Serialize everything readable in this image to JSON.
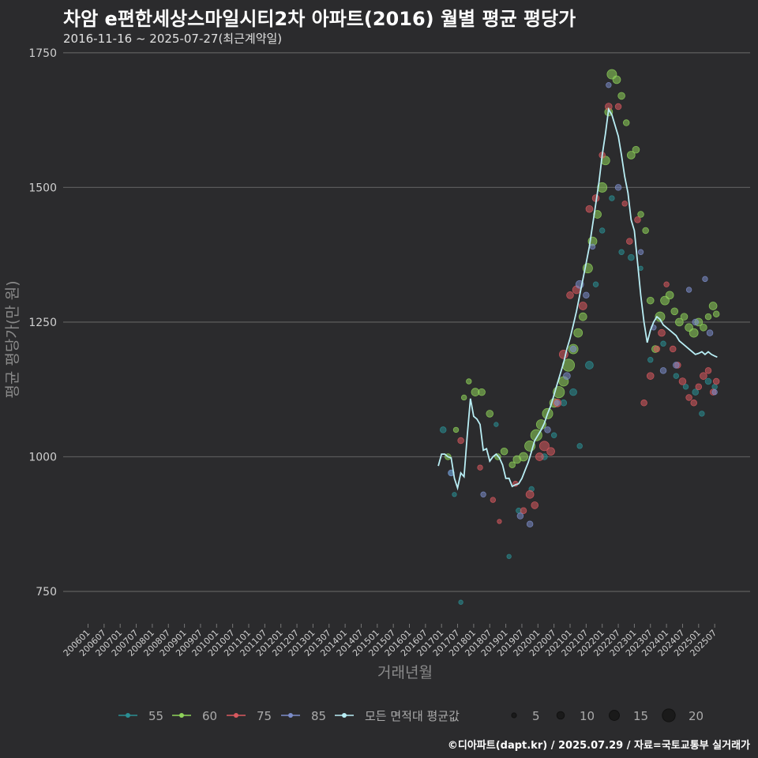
{
  "title": "차암 e편한세상스마일시티2차 아파트(2016) 월별 평균 평당가",
  "subtitle": "2016-11-16 ~ 2025-07-27(최근계약일)",
  "credit": "©디아파트(dapt.kr) / 2025.07.29 / 자료=국토교통부 실거래가",
  "colors": {
    "s55": "#2a8f94",
    "s60": "#8fd35a",
    "s75": "#d9595f",
    "s85": "#7c8dc9",
    "avg": "#b9eef5",
    "grid": "#5a5a5a"
  },
  "chart_data": {
    "type": "scatter",
    "xlabel": "거래년월",
    "ylabel": "평균 평당가(만 원)",
    "ylim": [
      690,
      1760
    ],
    "yticks": [
      750,
      1000,
      1250,
      1500,
      1750
    ],
    "ytick_labels": [
      "750",
      "1000",
      "1250",
      "1500",
      "1750"
    ],
    "xticks": [
      "200601",
      "200607",
      "200701",
      "200707",
      "200801",
      "200807",
      "200901",
      "200907",
      "201001",
      "201007",
      "201101",
      "201107",
      "201201",
      "201207",
      "201301",
      "201307",
      "201401",
      "201407",
      "201501",
      "201507",
      "201601",
      "201607",
      "201701",
      "201707",
      "201801",
      "201807",
      "201901",
      "201907",
      "202001",
      "202007",
      "202101",
      "202107",
      "202201",
      "202207",
      "202301",
      "202307",
      "202401",
      "202407",
      "202501",
      "202507"
    ],
    "series": [
      {
        "name": "55",
        "color": "#2a8f94",
        "points": [
          [
            2017.05,
            1050,
            3
          ],
          [
            2017.3,
            970,
            2
          ],
          [
            2017.4,
            930,
            1
          ],
          [
            2017.6,
            730,
            1
          ],
          [
            2018.7,
            1060,
            1
          ],
          [
            2019.1,
            815,
            1
          ],
          [
            2019.4,
            900,
            2
          ],
          [
            2019.8,
            940,
            2
          ],
          [
            2020.2,
            1000,
            3
          ],
          [
            2020.5,
            1040,
            2
          ],
          [
            2020.8,
            1100,
            3
          ],
          [
            2021.1,
            1120,
            4
          ],
          [
            2021.3,
            1020,
            2
          ],
          [
            2021.6,
            1170,
            5
          ],
          [
            2021.8,
            1320,
            2
          ],
          [
            2022.0,
            1420,
            2
          ],
          [
            2022.3,
            1480,
            2
          ],
          [
            2022.6,
            1380,
            2
          ],
          [
            2022.9,
            1370,
            3
          ],
          [
            2023.2,
            1350,
            1
          ],
          [
            2023.5,
            1180,
            2
          ],
          [
            2023.9,
            1210,
            2
          ],
          [
            2024.3,
            1150,
            2
          ],
          [
            2024.6,
            1130,
            2
          ],
          [
            2024.9,
            1120,
            3
          ],
          [
            2025.1,
            1080,
            2
          ],
          [
            2025.3,
            1140,
            3
          ],
          [
            2025.5,
            1130,
            2
          ]
        ]
      },
      {
        "name": "60",
        "color": "#8fd35a",
        "points": [
          [
            2017.2,
            1000,
            3
          ],
          [
            2017.45,
            1050,
            2
          ],
          [
            2017.7,
            1110,
            2
          ],
          [
            2017.85,
            1140,
            2
          ],
          [
            2018.05,
            1120,
            5
          ],
          [
            2018.25,
            1120,
            4
          ],
          [
            2018.5,
            1080,
            4
          ],
          [
            2018.75,
            1000,
            3
          ],
          [
            2018.95,
            1010,
            4
          ],
          [
            2019.2,
            985,
            3
          ],
          [
            2019.35,
            995,
            5
          ],
          [
            2019.55,
            1000,
            6
          ],
          [
            2019.75,
            1020,
            8
          ],
          [
            2019.95,
            1040,
            9
          ],
          [
            2020.1,
            1060,
            7
          ],
          [
            2020.3,
            1080,
            8
          ],
          [
            2020.5,
            1100,
            6
          ],
          [
            2020.65,
            1120,
            9
          ],
          [
            2020.8,
            1140,
            7
          ],
          [
            2020.95,
            1170,
            10
          ],
          [
            2021.1,
            1200,
            7
          ],
          [
            2021.25,
            1230,
            6
          ],
          [
            2021.4,
            1260,
            5
          ],
          [
            2021.55,
            1350,
            7
          ],
          [
            2021.7,
            1400,
            6
          ],
          [
            2021.85,
            1450,
            5
          ],
          [
            2022.0,
            1500,
            7
          ],
          [
            2022.1,
            1550,
            6
          ],
          [
            2022.2,
            1640,
            5
          ],
          [
            2022.3,
            1710,
            7
          ],
          [
            2022.45,
            1700,
            5
          ],
          [
            2022.6,
            1670,
            4
          ],
          [
            2022.75,
            1620,
            3
          ],
          [
            2022.9,
            1560,
            5
          ],
          [
            2023.05,
            1570,
            4
          ],
          [
            2023.2,
            1450,
            3
          ],
          [
            2023.35,
            1420,
            3
          ],
          [
            2023.5,
            1290,
            4
          ],
          [
            2023.65,
            1200,
            4
          ],
          [
            2023.8,
            1260,
            7
          ],
          [
            2023.95,
            1290,
            6
          ],
          [
            2024.1,
            1300,
            5
          ],
          [
            2024.25,
            1270,
            4
          ],
          [
            2024.4,
            1250,
            5
          ],
          [
            2024.55,
            1260,
            4
          ],
          [
            2024.7,
            1240,
            5
          ],
          [
            2024.85,
            1230,
            6
          ],
          [
            2025.0,
            1250,
            5
          ],
          [
            2025.15,
            1240,
            4
          ],
          [
            2025.3,
            1260,
            3
          ],
          [
            2025.45,
            1280,
            5
          ],
          [
            2025.55,
            1265,
            3
          ]
        ]
      },
      {
        "name": "75",
        "color": "#d9595f",
        "points": [
          [
            2017.6,
            1030,
            3
          ],
          [
            2018.2,
            980,
            2
          ],
          [
            2018.6,
            920,
            2
          ],
          [
            2018.8,
            880,
            1
          ],
          [
            2019.3,
            950,
            2
          ],
          [
            2019.55,
            900,
            3
          ],
          [
            2019.75,
            930,
            5
          ],
          [
            2019.9,
            910,
            4
          ],
          [
            2020.05,
            1000,
            5
          ],
          [
            2020.2,
            1020,
            7
          ],
          [
            2020.4,
            1010,
            5
          ],
          [
            2020.6,
            1100,
            5
          ],
          [
            2020.8,
            1190,
            6
          ],
          [
            2021.0,
            1300,
            4
          ],
          [
            2021.2,
            1310,
            5
          ],
          [
            2021.4,
            1280,
            5
          ],
          [
            2021.6,
            1460,
            4
          ],
          [
            2021.8,
            1480,
            4
          ],
          [
            2022.0,
            1560,
            3
          ],
          [
            2022.2,
            1650,
            4
          ],
          [
            2022.5,
            1650,
            3
          ],
          [
            2022.7,
            1470,
            2
          ],
          [
            2022.85,
            1400,
            3
          ],
          [
            2023.1,
            1440,
            3
          ],
          [
            2023.3,
            1100,
            3
          ],
          [
            2023.5,
            1150,
            4
          ],
          [
            2023.7,
            1200,
            3
          ],
          [
            2023.85,
            1230,
            4
          ],
          [
            2024.0,
            1320,
            2
          ],
          [
            2024.2,
            1200,
            3
          ],
          [
            2024.35,
            1170,
            3
          ],
          [
            2024.5,
            1140,
            4
          ],
          [
            2024.7,
            1110,
            3
          ],
          [
            2024.85,
            1100,
            3
          ],
          [
            2025.0,
            1130,
            3
          ],
          [
            2025.15,
            1150,
            4
          ],
          [
            2025.3,
            1160,
            3
          ],
          [
            2025.45,
            1120,
            3
          ],
          [
            2025.55,
            1140,
            3
          ]
        ]
      },
      {
        "name": "85",
        "color": "#7c8dc9",
        "points": [
          [
            2017.3,
            970,
            3
          ],
          [
            2018.3,
            930,
            2
          ],
          [
            2019.45,
            890,
            3
          ],
          [
            2019.75,
            875,
            3
          ],
          [
            2020.3,
            1050,
            3
          ],
          [
            2020.6,
            1100,
            2
          ],
          [
            2020.9,
            1150,
            4
          ],
          [
            2021.1,
            1200,
            3
          ],
          [
            2021.3,
            1320,
            5
          ],
          [
            2021.5,
            1300,
            3
          ],
          [
            2021.7,
            1390,
            2
          ],
          [
            2022.2,
            1690,
            2
          ],
          [
            2022.5,
            1500,
            3
          ],
          [
            2023.2,
            1380,
            2
          ],
          [
            2023.6,
            1240,
            2
          ],
          [
            2023.9,
            1160,
            3
          ],
          [
            2024.3,
            1170,
            3
          ],
          [
            2024.7,
            1310,
            2
          ],
          [
            2024.9,
            1250,
            3
          ],
          [
            2025.2,
            1330,
            2
          ],
          [
            2025.35,
            1230,
            3
          ],
          [
            2025.5,
            1120,
            2
          ]
        ]
      }
    ],
    "average": [
      [
        2016.9,
        983
      ],
      [
        2017.0,
        1005
      ],
      [
        2017.1,
        1005
      ],
      [
        2017.2,
        1000
      ],
      [
        2017.3,
        998
      ],
      [
        2017.4,
        960
      ],
      [
        2017.5,
        942
      ],
      [
        2017.6,
        970
      ],
      [
        2017.7,
        963
      ],
      [
        2017.8,
        1040
      ],
      [
        2017.9,
        1108
      ],
      [
        2018.0,
        1075
      ],
      [
        2018.1,
        1070
      ],
      [
        2018.2,
        1060
      ],
      [
        2018.3,
        1012
      ],
      [
        2018.4,
        1015
      ],
      [
        2018.5,
        992
      ],
      [
        2018.6,
        1000
      ],
      [
        2018.7,
        1005
      ],
      [
        2018.8,
        998
      ],
      [
        2018.9,
        985
      ],
      [
        2019.0,
        960
      ],
      [
        2019.1,
        960
      ],
      [
        2019.2,
        945
      ],
      [
        2019.3,
        948
      ],
      [
        2019.4,
        950
      ],
      [
        2019.5,
        960
      ],
      [
        2019.6,
        975
      ],
      [
        2019.7,
        990
      ],
      [
        2019.8,
        1010
      ],
      [
        2019.9,
        1030
      ],
      [
        2020.0,
        1040
      ],
      [
        2020.1,
        1050
      ],
      [
        2020.2,
        1062
      ],
      [
        2020.3,
        1080
      ],
      [
        2020.4,
        1095
      ],
      [
        2020.5,
        1115
      ],
      [
        2020.6,
        1135
      ],
      [
        2020.7,
        1155
      ],
      [
        2020.8,
        1175
      ],
      [
        2020.9,
        1200
      ],
      [
        2021.0,
        1220
      ],
      [
        2021.1,
        1245
      ],
      [
        2021.2,
        1270
      ],
      [
        2021.3,
        1300
      ],
      [
        2021.4,
        1330
      ],
      [
        2021.5,
        1360
      ],
      [
        2021.6,
        1390
      ],
      [
        2021.7,
        1430
      ],
      [
        2021.8,
        1470
      ],
      [
        2021.9,
        1510
      ],
      [
        2022.0,
        1560
      ],
      [
        2022.1,
        1600
      ],
      [
        2022.2,
        1645
      ],
      [
        2022.3,
        1635
      ],
      [
        2022.4,
        1615
      ],
      [
        2022.5,
        1595
      ],
      [
        2022.6,
        1560
      ],
      [
        2022.7,
        1520
      ],
      [
        2022.8,
        1490
      ],
      [
        2022.9,
        1440
      ],
      [
        2023.0,
        1420
      ],
      [
        2023.1,
        1360
      ],
      [
        2023.2,
        1300
      ],
      [
        2023.3,
        1250
      ],
      [
        2023.4,
        1212
      ],
      [
        2023.5,
        1235
      ],
      [
        2023.6,
        1250
      ],
      [
        2023.7,
        1260
      ],
      [
        2023.8,
        1255
      ],
      [
        2023.9,
        1245
      ],
      [
        2024.0,
        1240
      ],
      [
        2024.1,
        1235
      ],
      [
        2024.2,
        1230
      ],
      [
        2024.3,
        1225
      ],
      [
        2024.4,
        1215
      ],
      [
        2024.5,
        1210
      ],
      [
        2024.6,
        1205
      ],
      [
        2024.7,
        1200
      ],
      [
        2024.8,
        1195
      ],
      [
        2024.9,
        1190
      ],
      [
        2025.0,
        1192
      ],
      [
        2025.1,
        1195
      ],
      [
        2025.2,
        1190
      ],
      [
        2025.3,
        1195
      ],
      [
        2025.4,
        1190
      ],
      [
        2025.5,
        1187
      ],
      [
        2025.58,
        1185
      ]
    ],
    "legend": {
      "colors": [
        {
          "label": "55",
          "color": "#2a8f94"
        },
        {
          "label": "60",
          "color": "#8fd35a"
        },
        {
          "label": "75",
          "color": "#d9595f"
        },
        {
          "label": "85",
          "color": "#7c8dc9"
        },
        {
          "label": "모든 면적대 평균값",
          "color": "#b9eef5"
        }
      ],
      "sizes": [
        {
          "label": "5",
          "value": 5
        },
        {
          "label": "10",
          "value": 10
        },
        {
          "label": "15",
          "value": 15
        },
        {
          "label": "20",
          "value": 20
        }
      ]
    }
  }
}
